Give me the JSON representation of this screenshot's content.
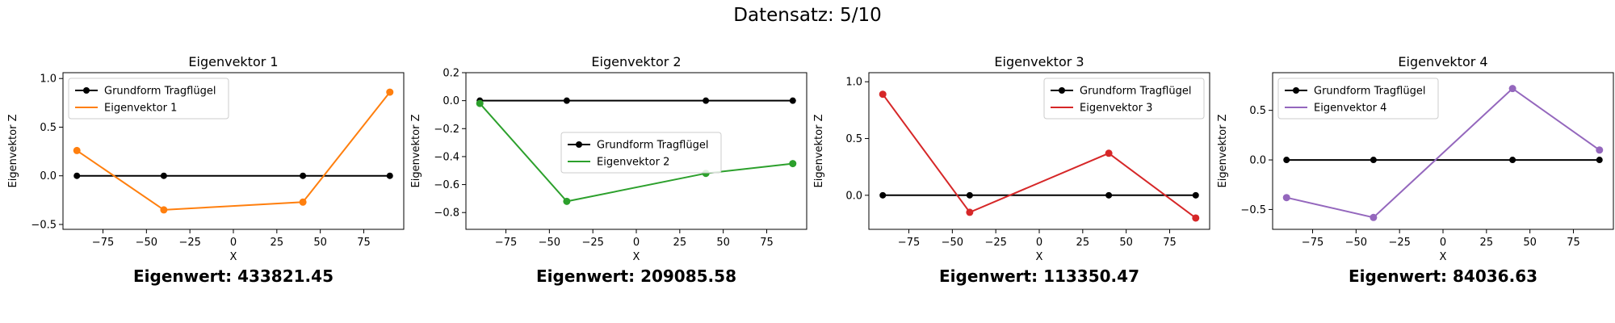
{
  "figure": {
    "suptitle": "Datensatz: 5/10"
  },
  "colors": {
    "base": "#000000",
    "series": [
      "#ff7f0e",
      "#2ca02c",
      "#d62728",
      "#9467bd"
    ]
  },
  "chart_data": [
    {
      "type": "line",
      "title": "Eigenvektor 1",
      "xlabel": "X",
      "ylabel": "Eigenvektor Z",
      "xlim": [
        -98,
        98
      ],
      "ylim": [
        -0.55,
        1.06
      ],
      "xticks": [
        -75,
        -50,
        -25,
        0,
        25,
        50,
        75
      ],
      "xtick_labels": [
        "−75",
        "−50",
        "−25",
        "0",
        "25",
        "50",
        "75"
      ],
      "yticks": [
        -0.5,
        0.0,
        0.5,
        1.0
      ],
      "ytick_labels": [
        "−0.5",
        "0.0",
        "0.5",
        "1.0"
      ],
      "legend_position": "upper-left",
      "x": [
        -90,
        -40,
        40,
        90
      ],
      "series": [
        {
          "name": "Grundform Tragflügel",
          "values": [
            0,
            0,
            0,
            0
          ],
          "color": "#000000"
        },
        {
          "name": "Eigenvektor 1",
          "values": [
            0.26,
            -0.35,
            -0.27,
            0.86
          ],
          "color": "#ff7f0e"
        }
      ],
      "eigenwert": "Eigenwert: 433821.45"
    },
    {
      "type": "line",
      "title": "Eigenvektor 2",
      "xlabel": "X",
      "ylabel": "Eigenvektor Z",
      "xlim": [
        -98,
        98
      ],
      "ylim": [
        -0.92,
        0.2
      ],
      "xticks": [
        -75,
        -50,
        -25,
        0,
        25,
        50,
        75
      ],
      "xtick_labels": [
        "−75",
        "−50",
        "−25",
        "0",
        "25",
        "50",
        "75"
      ],
      "yticks": [
        -0.8,
        -0.6,
        -0.4,
        -0.2,
        0.0,
        0.2
      ],
      "ytick_labels": [
        "−0.8",
        "−0.6",
        "−0.4",
        "−0.2",
        "0.0",
        "0.2"
      ],
      "legend_position": "center",
      "x": [
        -90,
        -40,
        40,
        90
      ],
      "series": [
        {
          "name": "Grundform Tragflügel",
          "values": [
            0,
            0,
            0,
            0
          ],
          "color": "#000000"
        },
        {
          "name": "Eigenvektor 2",
          "values": [
            -0.02,
            -0.72,
            -0.52,
            -0.45
          ],
          "color": "#2ca02c"
        }
      ],
      "eigenwert": "Eigenwert: 209085.58"
    },
    {
      "type": "line",
      "title": "Eigenvektor 3",
      "xlabel": "X",
      "ylabel": "Eigenvektor Z",
      "xlim": [
        -98,
        98
      ],
      "ylim": [
        -0.3,
        1.08
      ],
      "xticks": [
        -75,
        -50,
        -25,
        0,
        25,
        50,
        75
      ],
      "xtick_labels": [
        "−75",
        "−50",
        "−25",
        "0",
        "25",
        "50",
        "75"
      ],
      "yticks": [
        0.0,
        0.5,
        1.0
      ],
      "ytick_labels": [
        "0.0",
        "0.5",
        "1.0"
      ],
      "legend_position": "upper-right",
      "x": [
        -90,
        -40,
        40,
        90
      ],
      "series": [
        {
          "name": "Grundform Tragflügel",
          "values": [
            0,
            0,
            0,
            0
          ],
          "color": "#000000"
        },
        {
          "name": "Eigenvektor 3",
          "values": [
            0.89,
            -0.15,
            0.37,
            -0.2
          ],
          "color": "#d62728"
        }
      ],
      "eigenwert": "Eigenwert: 113350.47"
    },
    {
      "type": "line",
      "title": "Eigenvektor 4",
      "xlabel": "X",
      "ylabel": "Eigenvektor Z",
      "xlim": [
        -98,
        98
      ],
      "ylim": [
        -0.7,
        0.88
      ],
      "xticks": [
        -75,
        -50,
        -25,
        0,
        25,
        50,
        75
      ],
      "xtick_labels": [
        "−75",
        "−50",
        "−25",
        "0",
        "25",
        "50",
        "75"
      ],
      "yticks": [
        -0.5,
        0.0,
        0.5
      ],
      "ytick_labels": [
        "−0.5",
        "0.0",
        "0.5"
      ],
      "legend_position": "upper-left",
      "x": [
        -90,
        -40,
        40,
        90
      ],
      "series": [
        {
          "name": "Grundform Tragflügel",
          "values": [
            0,
            0,
            0,
            0
          ],
          "color": "#000000"
        },
        {
          "name": "Eigenvektor 4",
          "values": [
            -0.38,
            -0.58,
            0.72,
            0.1
          ],
          "color": "#9467bd"
        }
      ],
      "eigenwert": "Eigenwert: 84036.63"
    }
  ]
}
